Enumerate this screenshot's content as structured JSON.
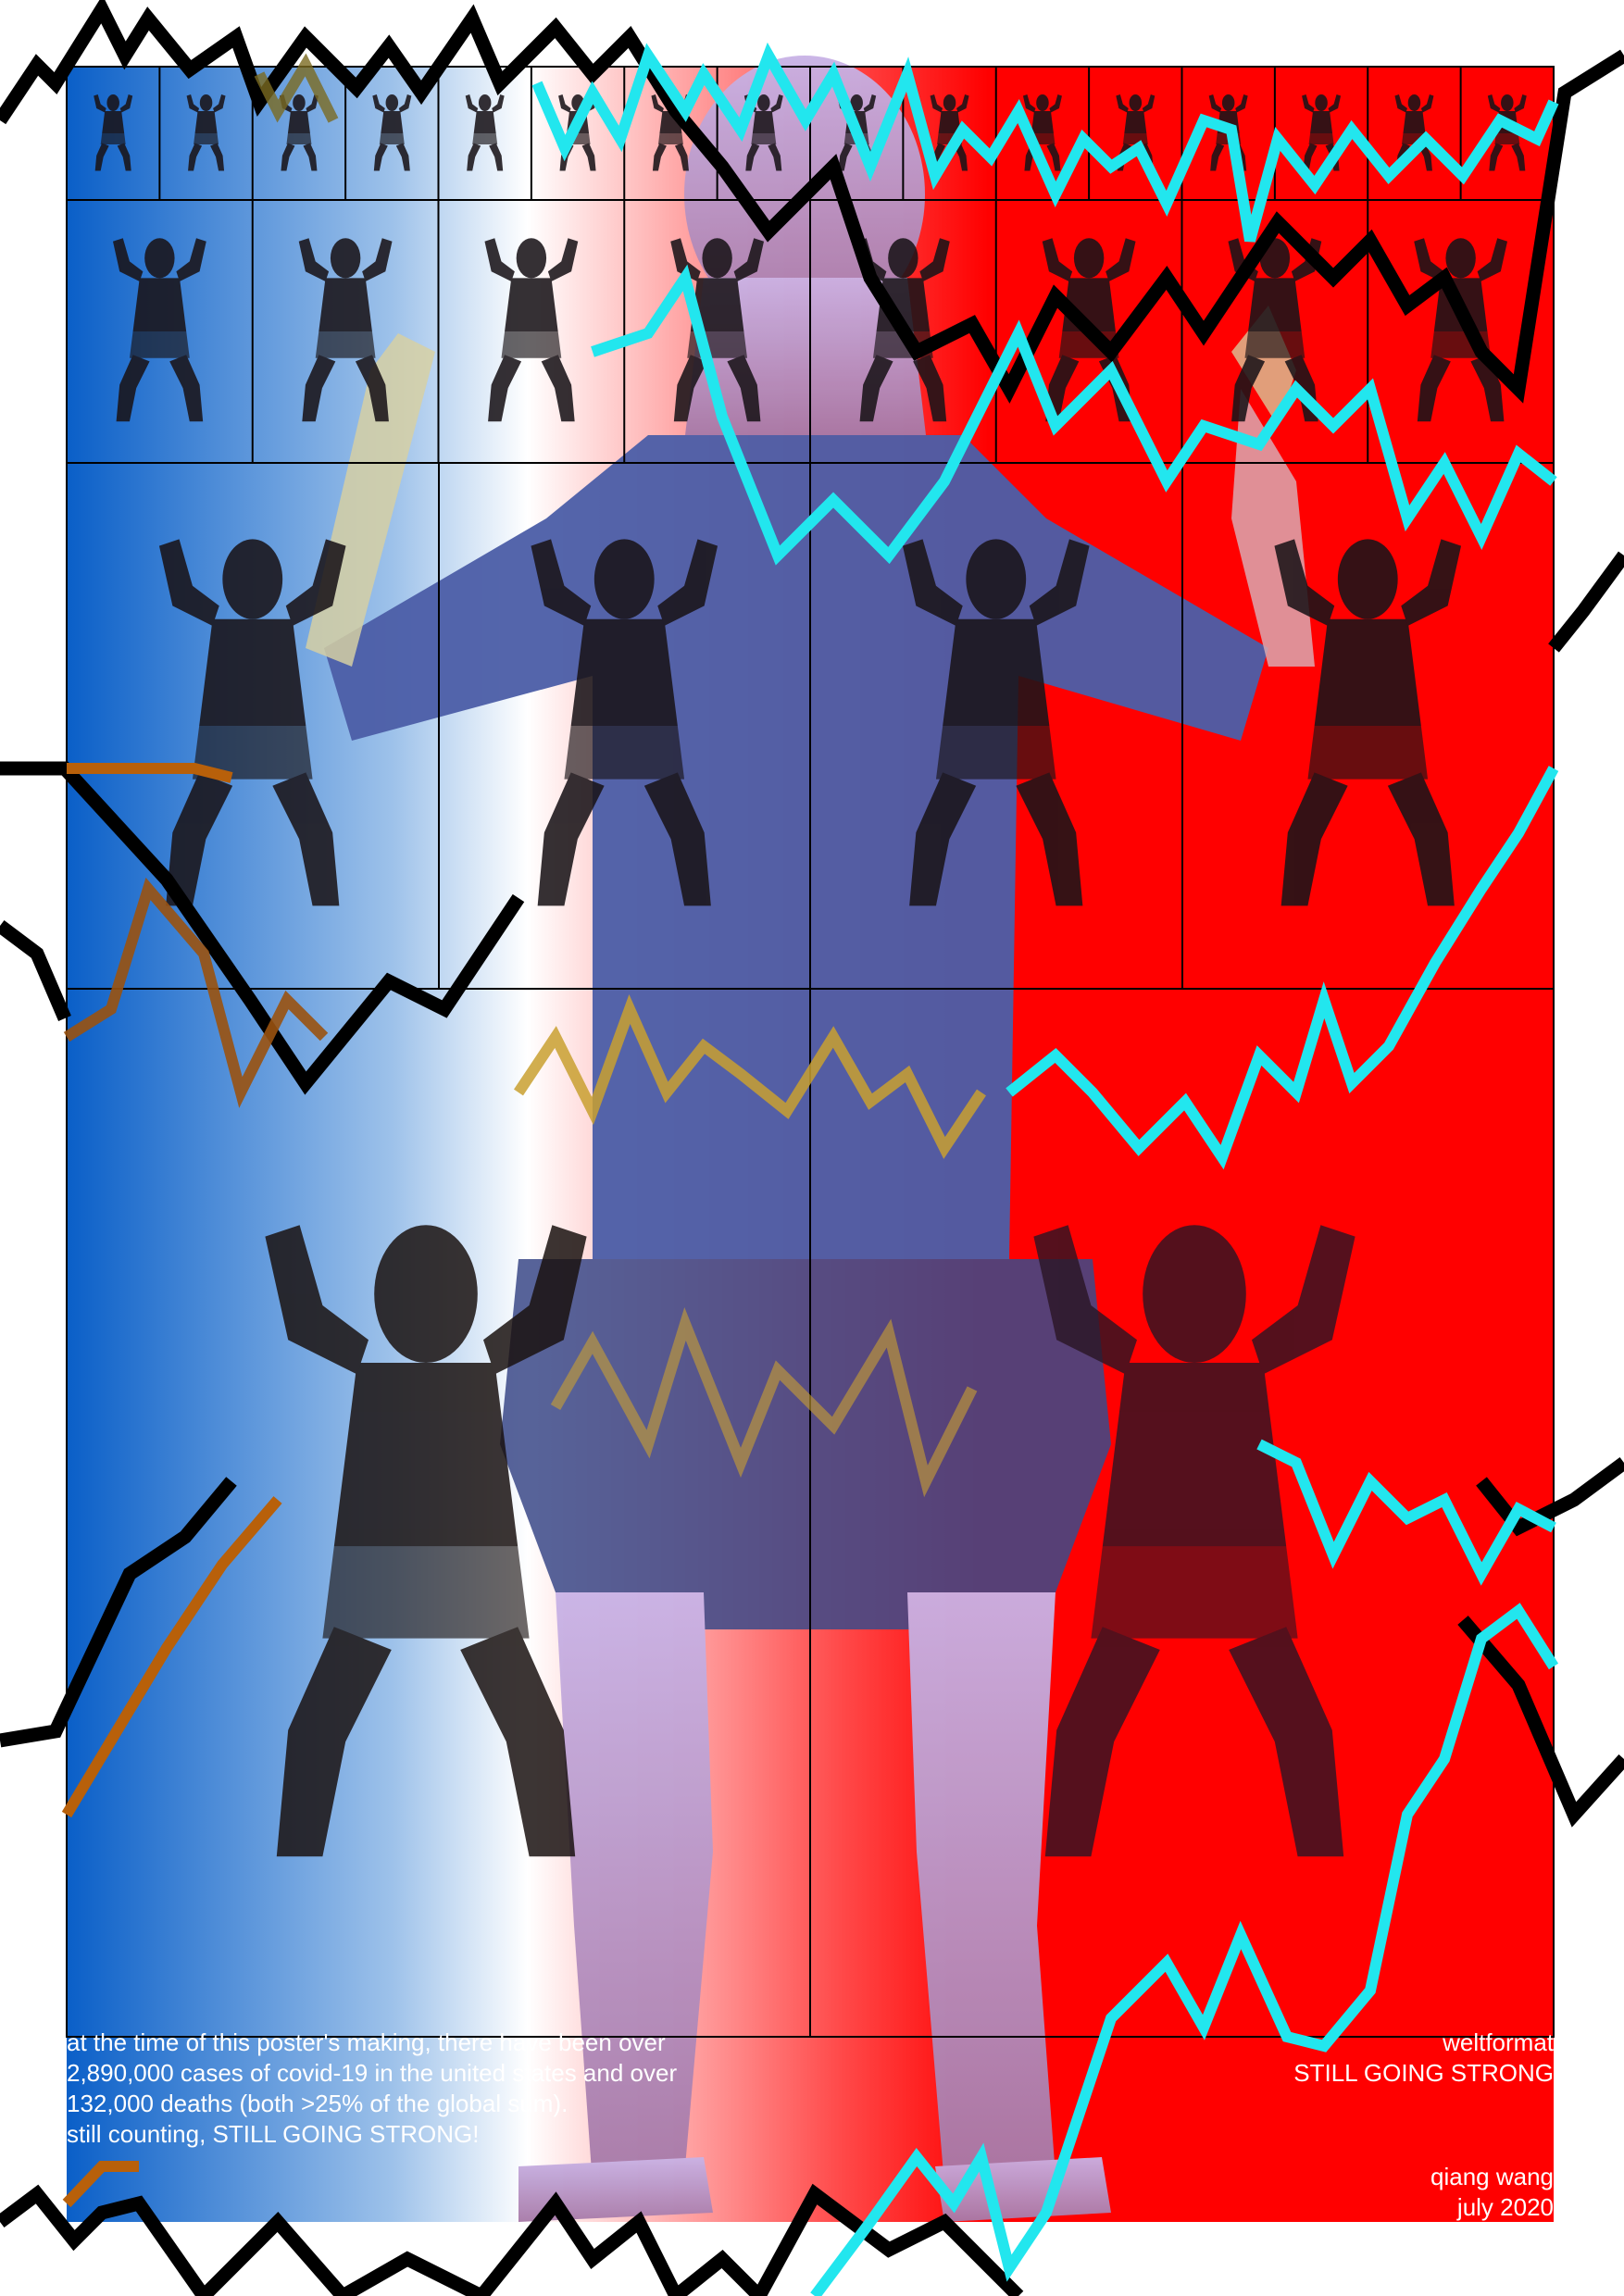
{
  "colors": {
    "blue": "#0a5fc8",
    "red": "#ff0000",
    "white": "#ffffff",
    "cyan": "#22e6ee",
    "orange": "#b8600a",
    "black": "#000000",
    "shirt": "#4d5fa8"
  },
  "statement": {
    "line1": "at the time of this poster's making, there have been over",
    "line2": "2,890,000 cases of covid-19 in the united states and over",
    "line3": "132,000 deaths (both >25% of the global sum).",
    "line4": "still counting, STILL GOING STRONG!"
  },
  "publisher": {
    "name": "weltformat",
    "tagline": "STILL GOING STRONG"
  },
  "credits": {
    "artist": "qiang wang",
    "date": "july 2020"
  },
  "figures": {
    "row1_count": 16,
    "row2_count": 8,
    "row3_count": 4,
    "row4_count": 2
  }
}
